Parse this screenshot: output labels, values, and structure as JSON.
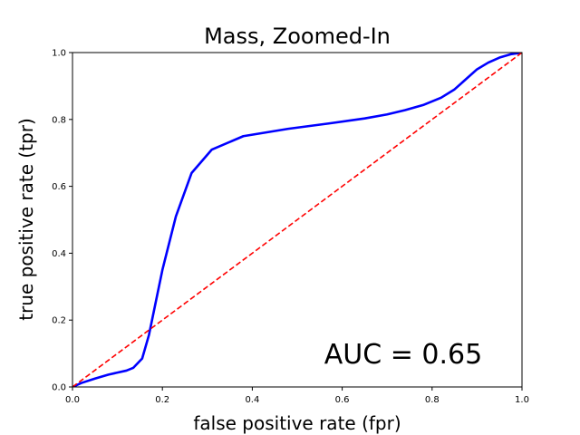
{
  "chart_data": {
    "type": "line",
    "title": "Mass, Zoomed-In",
    "xlabel": "false positive rate (fpr)",
    "ylabel": "true positive rate (tpr)",
    "xlim": [
      0,
      1
    ],
    "ylim": [
      0,
      1
    ],
    "xticks": [
      "0.0",
      "0.2",
      "0.4",
      "0.6",
      "0.8",
      "1.0"
    ],
    "yticks": [
      "0.0",
      "0.2",
      "0.4",
      "0.6",
      "0.8",
      "1.0"
    ],
    "grid": false,
    "annotation": "AUC = 0.65",
    "series": [
      {
        "style": "solid",
        "color": "#0000ff",
        "x": [
          0.0,
          0.02,
          0.05,
          0.08,
          0.1,
          0.12,
          0.135,
          0.155,
          0.17,
          0.18,
          0.2,
          0.23,
          0.265,
          0.31,
          0.38,
          0.48,
          0.57,
          0.65,
          0.7,
          0.74,
          0.78,
          0.82,
          0.85,
          0.875,
          0.9,
          0.925,
          0.95,
          0.975,
          1.0
        ],
        "y": [
          0.0,
          0.012,
          0.025,
          0.037,
          0.043,
          0.049,
          0.057,
          0.085,
          0.155,
          0.22,
          0.35,
          0.51,
          0.64,
          0.71,
          0.75,
          0.772,
          0.788,
          0.803,
          0.815,
          0.828,
          0.843,
          0.865,
          0.89,
          0.92,
          0.95,
          0.97,
          0.985,
          0.995,
          1.0
        ]
      },
      {
        "style": "dashed",
        "color": "#ff0000",
        "x": [
          0,
          1
        ],
        "y": [
          0,
          1
        ]
      }
    ]
  }
}
